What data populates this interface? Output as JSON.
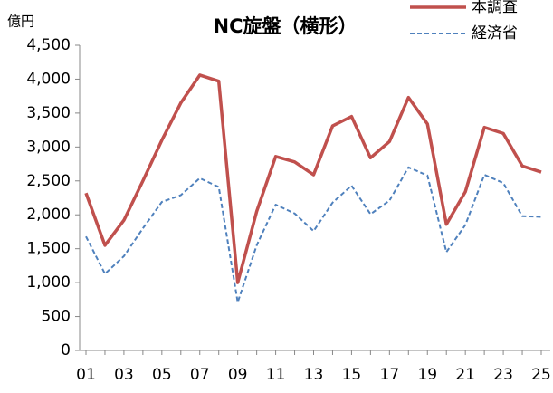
{
  "chart_data": {
    "type": "line",
    "title": "NC旋盤（横形）",
    "y_label": "億円",
    "categories": [
      "01",
      null,
      "03",
      null,
      "05",
      null,
      "07",
      null,
      "09",
      null,
      "11",
      null,
      "13",
      null,
      "15",
      null,
      "17",
      null,
      "19",
      null,
      "21",
      null,
      "23",
      null,
      "25"
    ],
    "series": [
      {
        "name": "本調査",
        "color": "#c0504d",
        "style": "solid",
        "values": [
          2320,
          1550,
          1920,
          2500,
          3100,
          3650,
          4060,
          3970,
          1000,
          2050,
          2860,
          2780,
          2590,
          3310,
          3450,
          2840,
          3080,
          3730,
          3340,
          1860,
          2340,
          3290,
          3200,
          2720,
          2630
        ]
      },
      {
        "name": "経済省",
        "color": "#4f81bd",
        "style": "dashed",
        "values": [
          1680,
          1130,
          1390,
          1800,
          2190,
          2290,
          2540,
          2410,
          710,
          1550,
          2150,
          2020,
          1760,
          2180,
          2430,
          2010,
          2210,
          2700,
          2580,
          1450,
          1850,
          2590,
          2470,
          1980,
          1970
        ]
      }
    ],
    "ylim": [
      0,
      4500
    ],
    "yticks": [
      0,
      500,
      {
        "value": 1000,
        "label": "1,000"
      },
      {
        "value": 1500,
        "label": "1,500"
      },
      {
        "value": 2000,
        "label": "2,000"
      },
      {
        "value": 2500,
        "label": "2,500"
      },
      {
        "value": 3000,
        "label": "3,000"
      },
      {
        "value": 3500,
        "label": "3,500"
      },
      {
        "value": 4000,
        "label": "4,000"
      },
      {
        "value": 4500,
        "label": "4,500"
      }
    ],
    "grid": false,
    "legend": "top-right"
  }
}
